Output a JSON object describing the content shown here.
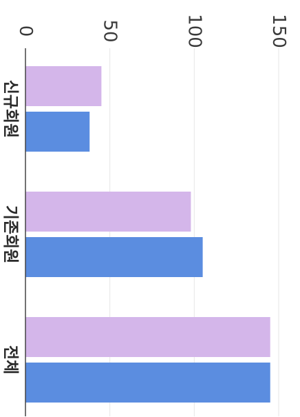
{
  "chart_data": {
    "type": "bar",
    "orientation": "horizontal",
    "categories": [
      "신규회원",
      "기존회원",
      "전체"
    ],
    "series": [
      {
        "color": "#d4b6ea",
        "values": [
          45,
          98,
          145
        ]
      },
      {
        "color": "#5b8de0",
        "values": [
          38,
          105,
          145
        ]
      }
    ],
    "xlim": [
      0,
      150
    ],
    "ticks": [
      0,
      50,
      100,
      150
    ],
    "tick_labels": [
      "0",
      "50",
      "100",
      "150"
    ],
    "grid": true,
    "legend": "none"
  },
  "colors": {
    "grid": "#e6e6e6",
    "axis": "#444444"
  }
}
